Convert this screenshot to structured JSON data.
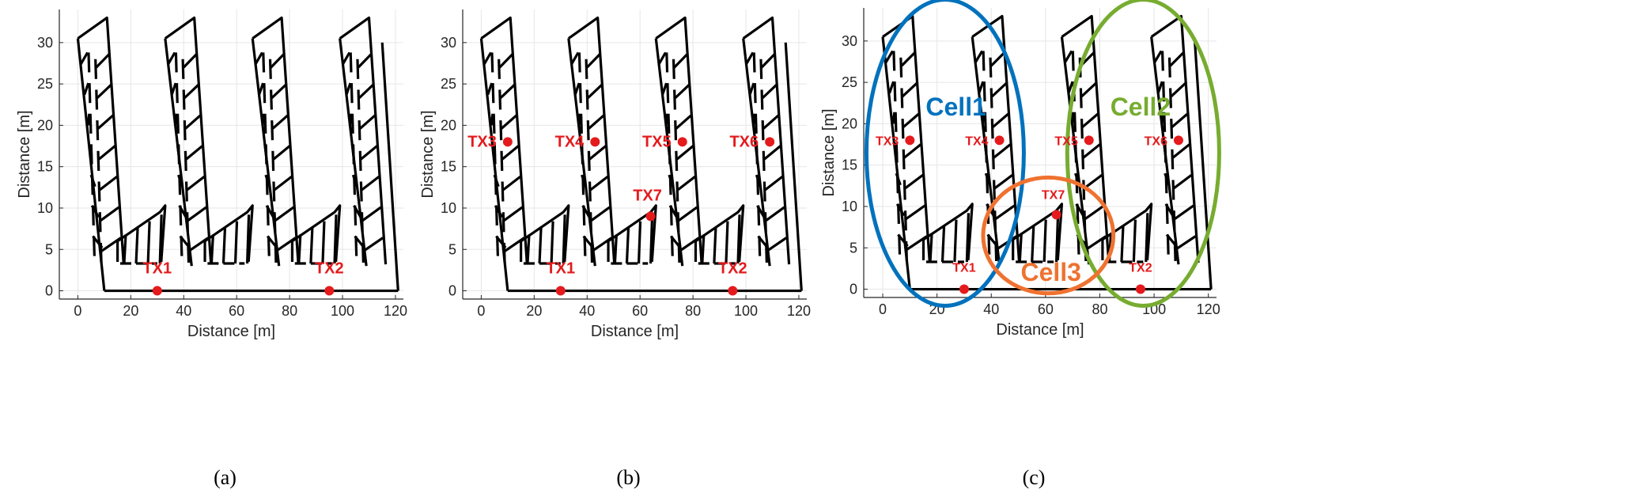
{
  "figure": {
    "colors": {
      "axis": "#262626",
      "grid": "#e6e6e6",
      "building": "#000000",
      "tx": "#e41a1c",
      "cell1": "#0072bd",
      "cell2": "#77ac30",
      "cell3": "#ef7230"
    },
    "panels": [
      {
        "id": "a",
        "caption": "(a)",
        "xlabel": "Distance [m]",
        "ylabel": "Distance [m]",
        "xticks": [
          "0",
          "20",
          "40",
          "60",
          "80",
          "100",
          "120"
        ],
        "yticks": [
          "0",
          "5",
          "10",
          "15",
          "20",
          "25",
          "30"
        ],
        "transmitters": [
          {
            "label": "TX1",
            "x": 30,
            "y": 0
          },
          {
            "label": "TX2",
            "x": 95,
            "y": 0
          }
        ],
        "cells": []
      },
      {
        "id": "b",
        "caption": "(b)",
        "xlabel": "Distance [m]",
        "ylabel": "Distance [m]",
        "xticks": [
          "0",
          "20",
          "40",
          "60",
          "80",
          "100",
          "120"
        ],
        "yticks": [
          "0",
          "5",
          "10",
          "15",
          "20",
          "25",
          "30"
        ],
        "transmitters": [
          {
            "label": "TX1",
            "x": 30,
            "y": 0
          },
          {
            "label": "TX2",
            "x": 95,
            "y": 0
          },
          {
            "label": "TX3",
            "x": 10,
            "y": 18
          },
          {
            "label": "TX4",
            "x": 43,
            "y": 18
          },
          {
            "label": "TX5",
            "x": 76,
            "y": 18
          },
          {
            "label": "TX6",
            "x": 109,
            "y": 18
          },
          {
            "label": "TX7",
            "x": 64,
            "y": 9
          }
        ],
        "cells": []
      },
      {
        "id": "c",
        "caption": "(c)",
        "xlabel": "Distance [m]",
        "ylabel": "Distance [m]",
        "xticks": [
          "0",
          "20",
          "40",
          "60",
          "80",
          "100",
          "120"
        ],
        "yticks": [
          "0",
          "5",
          "10",
          "15",
          "20",
          "25",
          "30"
        ],
        "transmitters": [
          {
            "label": "TX1",
            "x": 30,
            "y": 0
          },
          {
            "label": "TX2",
            "x": 95,
            "y": 0
          },
          {
            "label": "TX3",
            "x": 10,
            "y": 18
          },
          {
            "label": "TX4",
            "x": 43,
            "y": 18
          },
          {
            "label": "TX5",
            "x": 76,
            "y": 18
          },
          {
            "label": "TX6",
            "x": 109,
            "y": 18
          },
          {
            "label": "TX7",
            "x": 64,
            "y": 9
          }
        ],
        "cells": [
          {
            "label": "Cell1",
            "color": "#0072bd"
          },
          {
            "label": "Cell2",
            "color": "#77ac30"
          },
          {
            "label": "Cell3",
            "color": "#ef7230"
          }
        ]
      }
    ]
  }
}
